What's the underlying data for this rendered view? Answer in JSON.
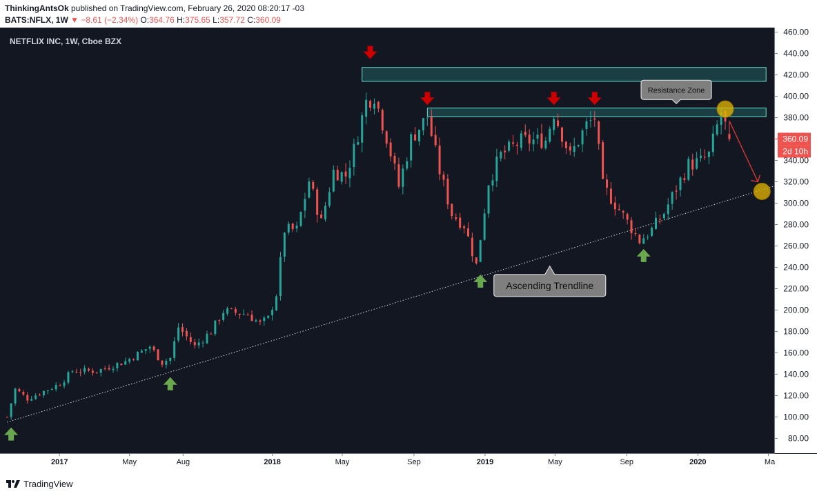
{
  "header": {
    "author": "ThinkingAntsOk",
    "published": " published on TradingView.com, February 26, 2020 08:20:17 -03",
    "symbol": "BATS:NFLX, 1W",
    "change": "▼ −8.61 (−2.34%)",
    "o_label": "O:",
    "o_value": "364.76",
    "h_label": "H:",
    "h_value": "375.65",
    "l_label": "L:",
    "l_value": "357.72",
    "c_label": "C:",
    "c_value": "360.09"
  },
  "footer": {
    "brand": "TradingView"
  },
  "colors": {
    "background": "#131722",
    "up": "#26a69a",
    "down": "#ef5350",
    "zone": "#2ea79a",
    "marker_up": "#6aa84f",
    "marker_down": "#cc0000",
    "target": "#e8b800"
  },
  "chart_data": {
    "type": "candlestick",
    "title": "NETFLIX INC, 1W, Cboe BZX",
    "y_ticks": [
      "460.00",
      "440.00",
      "420.00",
      "400.00",
      "380.00",
      "360.00",
      "340.00",
      "320.00",
      "300.00",
      "280.00",
      "260.00",
      "240.00",
      "220.00",
      "200.00",
      "180.00",
      "160.00",
      "140.00",
      "120.00",
      "100.00",
      "80.00"
    ],
    "ylim": [
      66,
      463
    ],
    "x_ticks": [
      {
        "label": "2017",
        "date": "2017-01-01"
      },
      {
        "label": "May",
        "date": "2017-05-01"
      },
      {
        "label": "Aug",
        "date": "2017-08-01"
      },
      {
        "label": "2018",
        "date": "2018-01-01"
      },
      {
        "label": "May",
        "date": "2018-05-01"
      },
      {
        "label": "Sep",
        "date": "2018-09-01"
      },
      {
        "label": "2019",
        "date": "2019-01-01"
      },
      {
        "label": "May",
        "date": "2019-05-01"
      },
      {
        "label": "Sep",
        "date": "2019-09-01"
      },
      {
        "label": "2020",
        "date": "2020-01-01"
      },
      {
        "label": "Ma",
        "date": "2020-05-01"
      }
    ],
    "xlim": [
      "2016-09-28",
      "2020-05-11"
    ],
    "last_price": "360.09",
    "countdown": "2d 10h",
    "weekly_close": [
      {
        "date": "2016-10-03",
        "close": 100
      },
      {
        "date": "2016-10-17",
        "close": 126
      },
      {
        "date": "2016-11-07",
        "close": 117
      },
      {
        "date": "2016-12-05",
        "close": 124
      },
      {
        "date": "2017-01-02",
        "close": 131
      },
      {
        "date": "2017-01-23",
        "close": 143
      },
      {
        "date": "2017-03-06",
        "close": 143
      },
      {
        "date": "2017-04-24",
        "close": 152
      },
      {
        "date": "2017-05-22",
        "close": 161
      },
      {
        "date": "2017-06-05",
        "close": 166
      },
      {
        "date": "2017-06-26",
        "close": 151
      },
      {
        "date": "2017-07-10",
        "close": 155
      },
      {
        "date": "2017-07-24",
        "close": 184
      },
      {
        "date": "2017-08-21",
        "close": 166
      },
      {
        "date": "2017-09-18",
        "close": 180
      },
      {
        "date": "2017-10-09",
        "close": 199
      },
      {
        "date": "2017-11-20",
        "close": 196
      },
      {
        "date": "2017-12-11",
        "close": 187
      },
      {
        "date": "2017-12-25",
        "close": 192
      },
      {
        "date": "2018-01-08",
        "close": 215
      },
      {
        "date": "2018-01-22",
        "close": 275
      },
      {
        "date": "2018-02-12",
        "close": 275
      },
      {
        "date": "2018-03-05",
        "close": 321
      },
      {
        "date": "2018-03-26",
        "close": 282
      },
      {
        "date": "2018-04-16",
        "close": 330
      },
      {
        "date": "2018-05-07",
        "close": 326
      },
      {
        "date": "2018-05-21",
        "close": 350
      },
      {
        "date": "2018-06-11",
        "close": 395
      },
      {
        "date": "2018-06-25",
        "close": 401
      },
      {
        "date": "2018-07-16",
        "close": 362
      },
      {
        "date": "2018-08-06",
        "close": 316
      },
      {
        "date": "2018-08-27",
        "close": 360
      },
      {
        "date": "2018-09-24",
        "close": 381
      },
      {
        "date": "2018-10-15",
        "close": 330
      },
      {
        "date": "2018-11-05",
        "close": 290
      },
      {
        "date": "2018-11-26",
        "close": 280
      },
      {
        "date": "2018-12-17",
        "close": 242
      },
      {
        "date": "2019-01-07",
        "close": 320
      },
      {
        "date": "2019-01-28",
        "close": 345
      },
      {
        "date": "2019-03-04",
        "close": 358
      },
      {
        "date": "2019-04-15",
        "close": 359
      },
      {
        "date": "2019-04-29",
        "close": 385
      },
      {
        "date": "2019-05-27",
        "close": 344
      },
      {
        "date": "2019-06-24",
        "close": 373
      },
      {
        "date": "2019-07-08",
        "close": 380
      },
      {
        "date": "2019-07-22",
        "close": 316
      },
      {
        "date": "2019-08-19",
        "close": 294
      },
      {
        "date": "2019-09-23",
        "close": 265
      },
      {
        "date": "2019-10-14",
        "close": 275
      },
      {
        "date": "2019-11-04",
        "close": 291
      },
      {
        "date": "2019-11-25",
        "close": 314
      },
      {
        "date": "2019-12-16",
        "close": 336
      },
      {
        "date": "2020-01-06",
        "close": 339
      },
      {
        "date": "2020-01-20",
        "close": 345
      },
      {
        "date": "2020-02-10",
        "close": 385
      },
      {
        "date": "2020-02-24",
        "close": 360
      }
    ],
    "resistance_zones": [
      {
        "top": 427,
        "bottom": 414,
        "start": "2018-06-04",
        "end": "2020-04-27"
      },
      {
        "top": 389,
        "bottom": 381,
        "start": "2018-09-24",
        "end": "2020-04-27"
      }
    ],
    "trendline": {
      "start": {
        "date": "2016-10-03",
        "value": 95
      },
      "end": {
        "date": "2020-05-11",
        "value": 316
      }
    },
    "annotations": [
      {
        "text": "Resistance Zone",
        "date": "2019-11-25",
        "value": 406
      },
      {
        "text": "Ascending Trendline",
        "date": "2019-04-22",
        "value": 223
      }
    ],
    "markers_down": [
      {
        "date": "2018-06-18",
        "value": 440
      },
      {
        "date": "2018-09-24",
        "value": 397
      },
      {
        "date": "2019-04-29",
        "value": 397
      },
      {
        "date": "2019-07-08",
        "value": 397
      }
    ],
    "markers_up": [
      {
        "date": "2016-10-10",
        "value": 85
      },
      {
        "date": "2017-07-10",
        "value": 132
      },
      {
        "date": "2018-12-24",
        "value": 228
      },
      {
        "date": "2019-09-30",
        "value": 252
      }
    ],
    "targets": [
      {
        "date": "2020-02-17",
        "value": 388
      },
      {
        "date": "2020-04-20",
        "value": 311
      }
    ],
    "projection": {
      "from": {
        "date": "2020-02-24",
        "value": 377
      },
      "to": {
        "date": "2020-04-13",
        "value": 320
      }
    }
  }
}
